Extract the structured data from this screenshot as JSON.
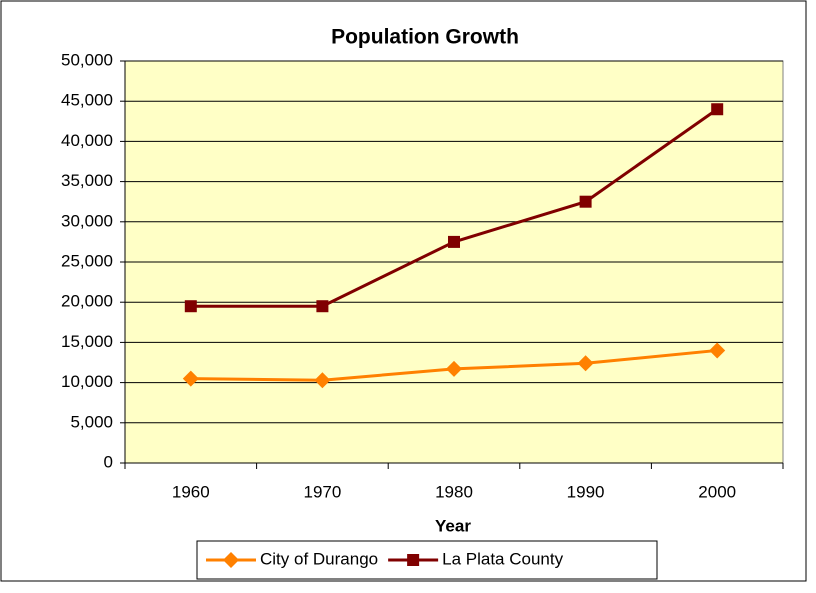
{
  "chart_data": {
    "type": "line",
    "title": "Population Growth",
    "x_label": "Year",
    "categories": [
      "1960",
      "1970",
      "1980",
      "1990",
      "2000"
    ],
    "series": [
      {
        "name": "City of Durango",
        "color": "#ff8000",
        "marker": "diamond",
        "values": [
          10500,
          10300,
          11700,
          12400,
          14000
        ]
      },
      {
        "name": "La Plata County",
        "color": "#800000",
        "marker": "square",
        "values": [
          19500,
          19500,
          27500,
          32500,
          44000
        ]
      }
    ],
    "ylim": [
      0,
      50000
    ],
    "yticks": [
      0,
      {
        "value": 5000,
        "label": "5,000"
      },
      {
        "value": 10000,
        "label": "10,000"
      },
      {
        "value": 15000,
        "label": "15,000"
      },
      {
        "value": 20000,
        "label": "20,000"
      },
      {
        "value": 25000,
        "label": "25,000"
      },
      {
        "value": 30000,
        "label": "30,000"
      },
      {
        "value": 35000,
        "label": "35,000"
      },
      {
        "value": 40000,
        "label": "40,000"
      },
      {
        "value": 45000,
        "label": "45,000"
      },
      {
        "value": 50000,
        "label": "50,000"
      }
    ],
    "grid": true,
    "legend": "bottom",
    "background": "#ffffc6"
  }
}
